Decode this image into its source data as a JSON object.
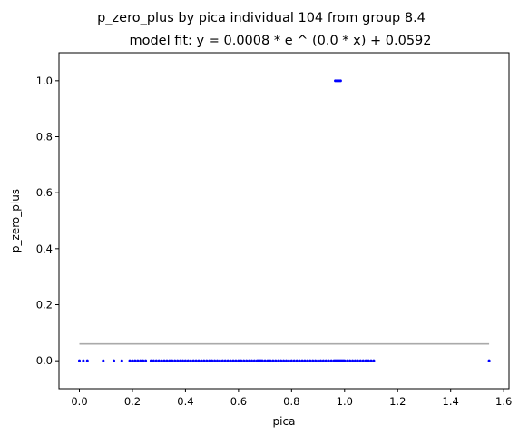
{
  "chart_data": {
    "type": "scatter",
    "title": "p_zero_plus by pica individual 104 from group 8.4",
    "subtitle": "model fit: y = 0.0008 * e ^ (0.0 * x) + 0.0592",
    "xlabel": "pica",
    "ylabel": "p_zero_plus",
    "xlim": [
      -0.077,
      1.62
    ],
    "ylim": [
      -0.1,
      1.1
    ],
    "xticks": [
      0.0,
      0.2,
      0.4,
      0.6,
      0.8,
      1.0,
      1.2,
      1.4,
      1.6
    ],
    "xtick_labels": [
      "0.0",
      "0.2",
      "0.4",
      "0.6",
      "0.8",
      "1.0",
      "1.2",
      "1.4",
      "1.6"
    ],
    "yticks": [
      0.0,
      0.2,
      0.4,
      0.6,
      0.8,
      1.0
    ],
    "ytick_labels": [
      "0.0",
      "0.2",
      "0.4",
      "0.6",
      "0.8",
      "1.0"
    ],
    "grid": false,
    "colors": {
      "points": "#0000ff",
      "fit_line": "#aaaaaa",
      "axes": "#000000"
    },
    "series": [
      {
        "kind": "points",
        "x": [
          0.0,
          0.015,
          0.03,
          0.09,
          0.13,
          0.16,
          0.19,
          0.2,
          0.21,
          0.22,
          0.23,
          0.24,
          0.25,
          0.27,
          0.28,
          0.29,
          0.3,
          0.31,
          0.32,
          0.33,
          0.34,
          0.35,
          0.36,
          0.37,
          0.38,
          0.39,
          0.4,
          0.41,
          0.42,
          0.43,
          0.44,
          0.45,
          0.46,
          0.47,
          0.48,
          0.49,
          0.5,
          0.51,
          0.52,
          0.53,
          0.54,
          0.55,
          0.56,
          0.57,
          0.58,
          0.59,
          0.6,
          0.61,
          0.62,
          0.63,
          0.64,
          0.65,
          0.66,
          0.67,
          0.675,
          0.68,
          0.685,
          0.69,
          0.7,
          0.71,
          0.72,
          0.73,
          0.74,
          0.75,
          0.76,
          0.77,
          0.78,
          0.79,
          0.8,
          0.81,
          0.82,
          0.83,
          0.84,
          0.85,
          0.86,
          0.87,
          0.88,
          0.89,
          0.9,
          0.91,
          0.92,
          0.93,
          0.94,
          0.95,
          0.96,
          0.965,
          0.97,
          0.975,
          0.98,
          0.985,
          0.99,
          0.995,
          1.0,
          1.01,
          1.02,
          1.03,
          1.04,
          1.05,
          1.06,
          1.07,
          1.08,
          1.09,
          1.1,
          1.11,
          1.545,
          0.965,
          0.97,
          0.975,
          0.98,
          0.985
        ],
        "y": [
          0,
          0,
          0,
          0,
          0,
          0,
          0,
          0,
          0,
          0,
          0,
          0,
          0,
          0,
          0,
          0,
          0,
          0,
          0,
          0,
          0,
          0,
          0,
          0,
          0,
          0,
          0,
          0,
          0,
          0,
          0,
          0,
          0,
          0,
          0,
          0,
          0,
          0,
          0,
          0,
          0,
          0,
          0,
          0,
          0,
          0,
          0,
          0,
          0,
          0,
          0,
          0,
          0,
          0,
          0,
          0,
          0,
          0,
          0,
          0,
          0,
          0,
          0,
          0,
          0,
          0,
          0,
          0,
          0,
          0,
          0,
          0,
          0,
          0,
          0,
          0,
          0,
          0,
          0,
          0,
          0,
          0,
          0,
          0,
          0,
          0,
          0,
          0,
          0,
          0,
          0,
          0,
          0,
          0,
          0,
          0,
          0,
          0,
          0,
          0,
          0,
          0,
          0,
          0,
          0,
          1,
          1,
          1,
          1,
          1
        ]
      },
      {
        "kind": "fit_line",
        "x": [
          0.0,
          1.545
        ],
        "y": [
          0.06,
          0.06
        ]
      }
    ]
  }
}
